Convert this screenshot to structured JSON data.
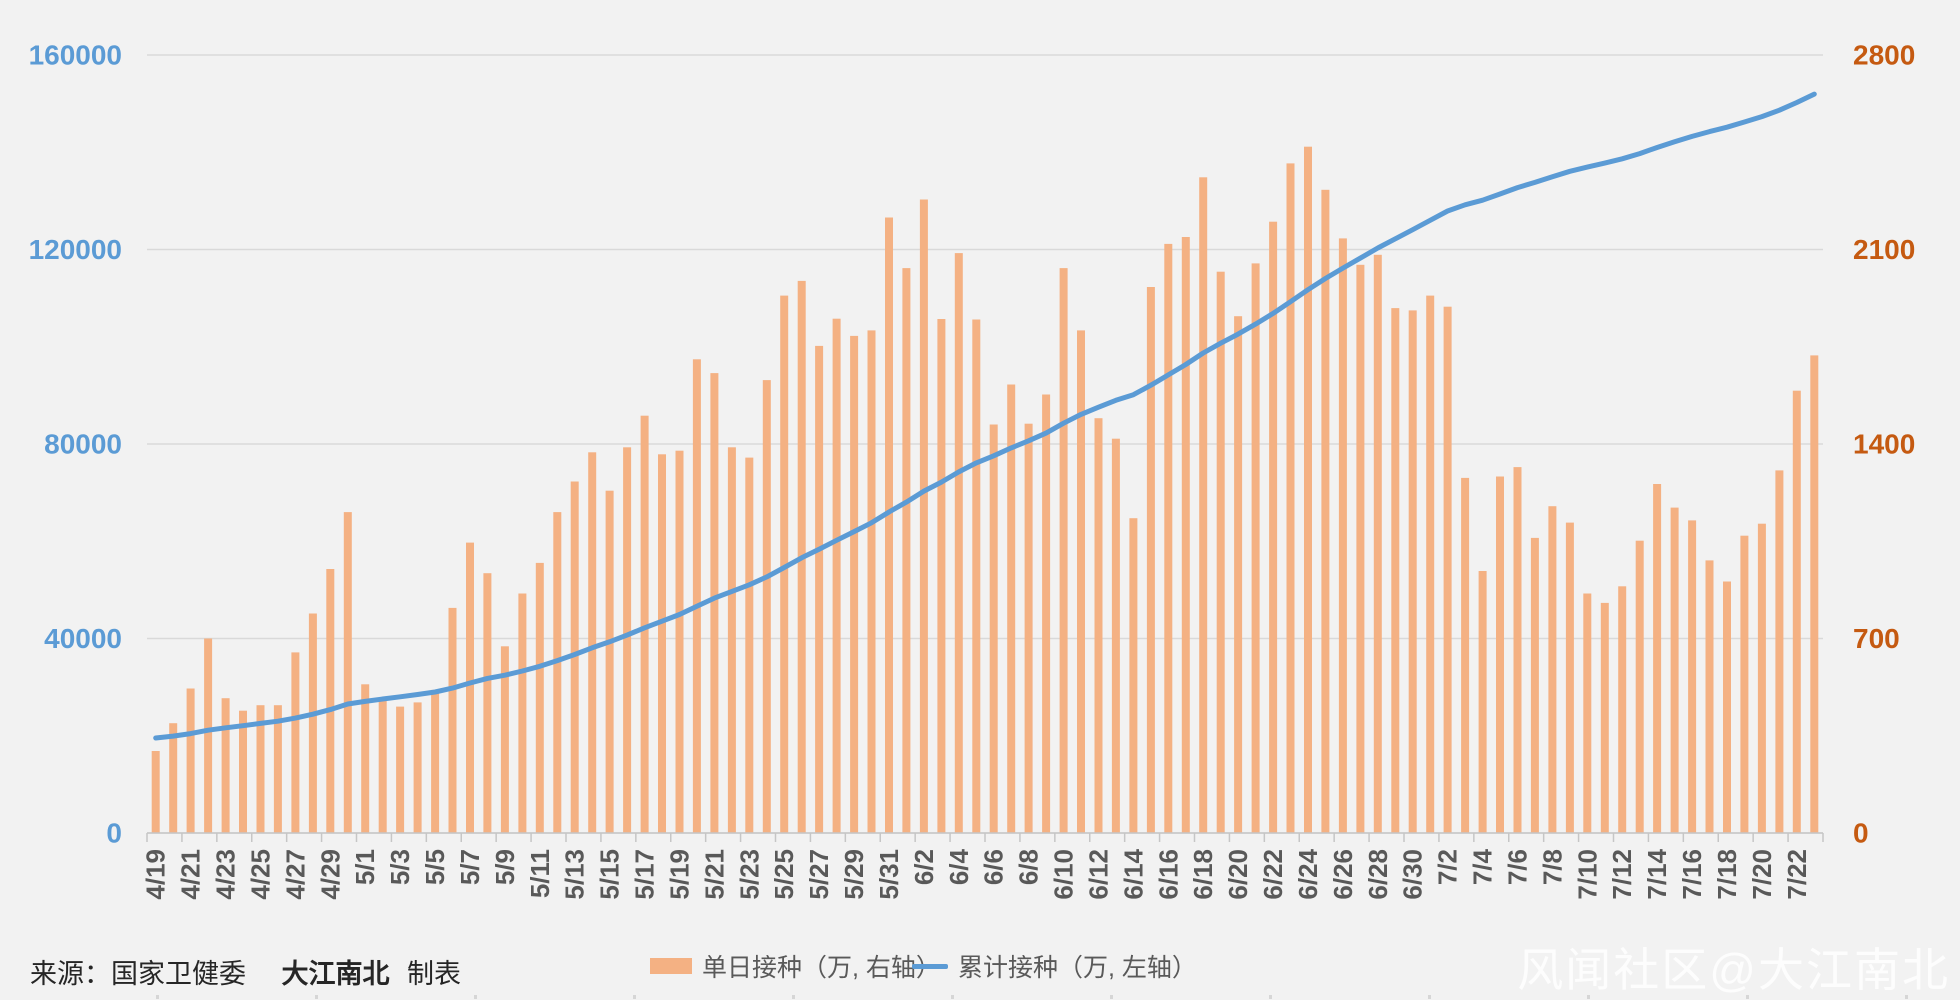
{
  "chart_data": {
    "type": "bar+line combo, dual axis",
    "title": "",
    "categories": [
      "4/19",
      "4/20",
      "4/21",
      "4/22",
      "4/23",
      "4/24",
      "4/25",
      "4/26",
      "4/27",
      "4/28",
      "4/29",
      "4/30",
      "5/1",
      "5/2",
      "5/3",
      "5/4",
      "5/5",
      "5/6",
      "5/7",
      "5/8",
      "5/9",
      "5/10",
      "5/11",
      "5/12",
      "5/13",
      "5/14",
      "5/15",
      "5/16",
      "5/17",
      "5/18",
      "5/19",
      "5/20",
      "5/21",
      "5/22",
      "5/23",
      "5/24",
      "5/25",
      "5/26",
      "5/27",
      "5/28",
      "5/29",
      "5/30",
      "5/31",
      "6/1",
      "6/2",
      "6/3",
      "6/4",
      "6/5",
      "6/6",
      "6/7",
      "6/8",
      "6/9",
      "6/10",
      "6/11",
      "6/12",
      "6/13",
      "6/14",
      "6/15",
      "6/16",
      "6/17",
      "6/18",
      "6/19",
      "6/20",
      "6/21",
      "6/22",
      "6/23",
      "6/24",
      "6/25",
      "6/26",
      "6/27",
      "6/28",
      "6/29",
      "6/30",
      "7/1",
      "7/2",
      "7/3",
      "7/4",
      "7/5",
      "7/6",
      "7/7",
      "7/8",
      "7/9",
      "7/10",
      "7/11",
      "7/12",
      "7/13",
      "7/14",
      "7/15",
      "7/16",
      "7/17",
      "7/18",
      "7/19",
      "7/20",
      "7/21",
      "7/22",
      "7/23"
    ],
    "series": [
      {
        "name": "单日接种（万, 右轴）",
        "type": "bar",
        "axis": "right",
        "color": "#f4b183",
        "values": [
          295,
          395,
          520,
          700,
          485,
          440,
          460,
          460,
          650,
          790,
          950,
          1155,
          535,
          485,
          455,
          470,
          515,
          810,
          1045,
          935,
          672,
          862,
          972,
          1155,
          1265,
          1370,
          1232,
          1388,
          1502,
          1363,
          1376,
          1705,
          1655,
          1388,
          1351,
          1630,
          1934,
          1987,
          1753,
          1851,
          1789,
          1809,
          2215,
          2033,
          2280,
          1850,
          2087,
          1848,
          1470,
          1614,
          1473,
          1578,
          2033,
          1809,
          1493,
          1419,
          1133,
          1965,
          2120,
          2145,
          2360,
          2020,
          1860,
          2050,
          2200,
          2410,
          2470,
          2315,
          2140,
          2045,
          2081,
          1889,
          1881,
          1934,
          1894,
          1278,
          943,
          1283,
          1317,
          1062,
          1176,
          1117,
          862,
          828,
          888,
          1052,
          1256,
          1171,
          1125,
          981,
          905,
          1070,
          1113,
          1305,
          1592,
          1719
        ]
      },
      {
        "name": "累计接种（万, 左轴）",
        "type": "line",
        "axis": "left",
        "color": "#5b9bd5",
        "values": [
          19530,
          19925,
          20445,
          21145,
          21630,
          22070,
          22530,
          22990,
          23640,
          24430,
          25380,
          26535,
          27070,
          27555,
          28010,
          28480,
          28995,
          29805,
          30850,
          31785,
          32457,
          33319,
          34291,
          35446,
          36711,
          38081,
          39313,
          40701,
          42203,
          43566,
          44942,
          46647,
          48302,
          49690,
          51041,
          52671,
          54605,
          56592,
          58345,
          60196,
          61985,
          63794,
          66009,
          68042,
          70322,
          72172,
          74259,
          76107,
          77577,
          79191,
          80664,
          82242,
          84275,
          86084,
          87577,
          88996,
          90129,
          92094,
          94214,
          96359,
          98719,
          100739,
          102599,
          104649,
          106849,
          109259,
          111729,
          114044,
          116184,
          118229,
          120310,
          122199,
          124080,
          126014,
          127908,
          129186,
          130129,
          131412,
          132729,
          133791,
          134967,
          136084,
          136946,
          137774,
          138662,
          139714,
          140970,
          142141,
          143266,
          144247,
          145152,
          146222,
          147335,
          148640,
          150232,
          151951
        ]
      }
    ],
    "left_axis": {
      "min": 0,
      "max": 160000,
      "ticks": [
        0,
        40000,
        80000,
        120000,
        160000
      ]
    },
    "right_axis": {
      "min": 0,
      "max": 2800,
      "ticks": [
        0,
        700,
        1400,
        2100,
        2800
      ]
    },
    "x_label_interval": 2,
    "grid": true,
    "legend_position": "bottom"
  },
  "legend": {
    "bar_label": "单日接种（万, 右轴）",
    "line_label": "累计接种（万, 左轴）"
  },
  "footer": {
    "prefix": "来源：",
    "source": "国家卫健委",
    "author": "大江南北",
    "suffix": "制表"
  },
  "watermark": "风闻社区@大江南北",
  "colors": {
    "background": "#f2f2f2",
    "gridline": "#d9d9d9",
    "axis_line": "#c6c6c6",
    "bar": "#f4b183",
    "line": "#5b9bd5",
    "left_axis_label": "#5b9bd5",
    "right_axis_label": "#c55a11",
    "x_label": "#595959",
    "legend_text": "#595959",
    "footer_text": "#262626",
    "watermark": "#fdfdfd"
  }
}
